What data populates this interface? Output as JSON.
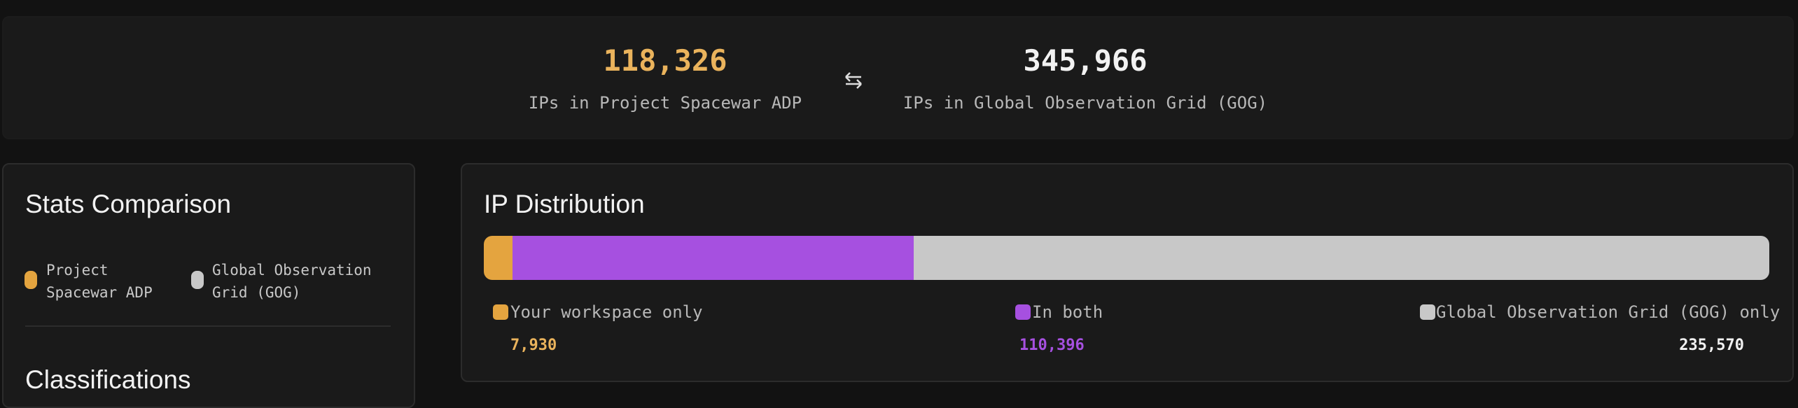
{
  "header": {
    "left": {
      "value": "118,326",
      "label": "IPs in Project Spacewar ADP"
    },
    "right": {
      "value": "345,966",
      "label": "IPs in Global Observation Grid (GOG)"
    }
  },
  "stats_panel": {
    "title": "Stats Comparison",
    "legend": [
      "Project Spacewar ADP",
      "Global Observation Grid (GOG)"
    ],
    "section_title": "Classifications"
  },
  "distribution": {
    "title": "IP Distribution",
    "segments": [
      {
        "name": "Your workspace only",
        "color": "#e4a43f",
        "value": 7930,
        "value_label": "7,930"
      },
      {
        "name": "In both",
        "color": "#a650e0",
        "value": 110396,
        "value_label": "110,396"
      },
      {
        "name": "Global Observation Grid (GOG) only",
        "color": "#c8c8c8",
        "value": 235570,
        "value_label": "235,570"
      }
    ]
  }
}
